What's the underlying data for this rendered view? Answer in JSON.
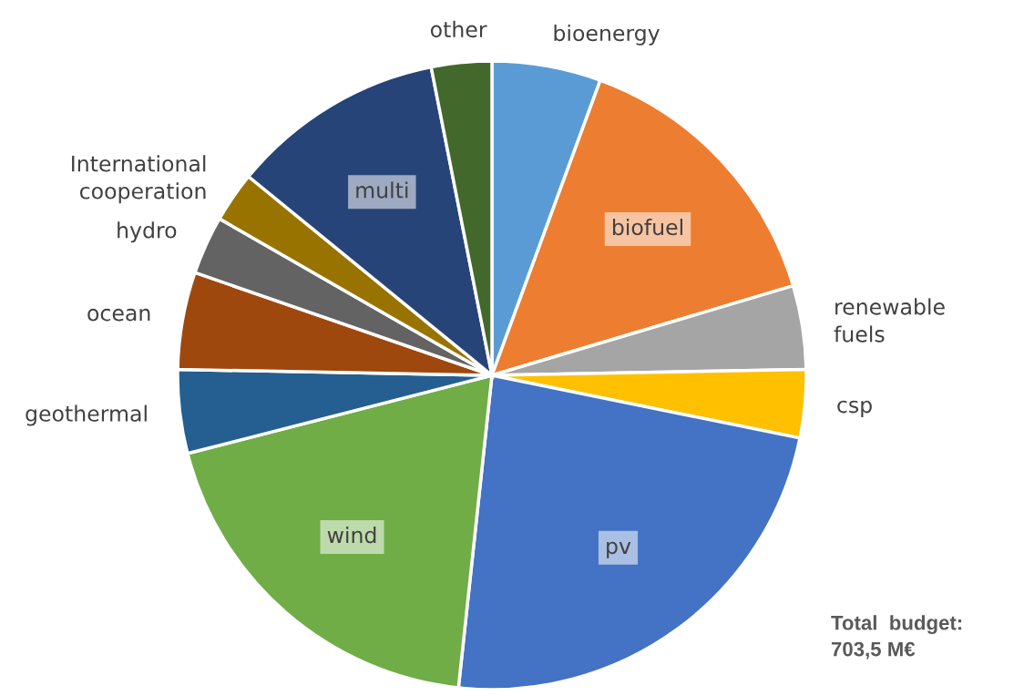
{
  "chart_data": {
    "type": "pie",
    "categories": [
      "bioenergy",
      "biofuel",
      "renewable fuels",
      "csp",
      "pv",
      "wind",
      "geothermal",
      "ocean",
      "hydro",
      "International cooperation",
      "multi",
      "other"
    ],
    "values": [
      5.6,
      14.8,
      4.3,
      3.5,
      23.5,
      19.3,
      4.3,
      5.0,
      3.0,
      2.6,
      11.0,
      3.1
    ],
    "colors": [
      "#5b9bd5",
      "#ed7d31",
      "#a5a5a5",
      "#ffc000",
      "#4472c4",
      "#70ad47",
      "#255e91",
      "#9e480e",
      "#636363",
      "#997300",
      "#264478",
      "#43682b"
    ],
    "annotations": [
      "Total  budget:\n703,5 M€"
    ]
  }
}
